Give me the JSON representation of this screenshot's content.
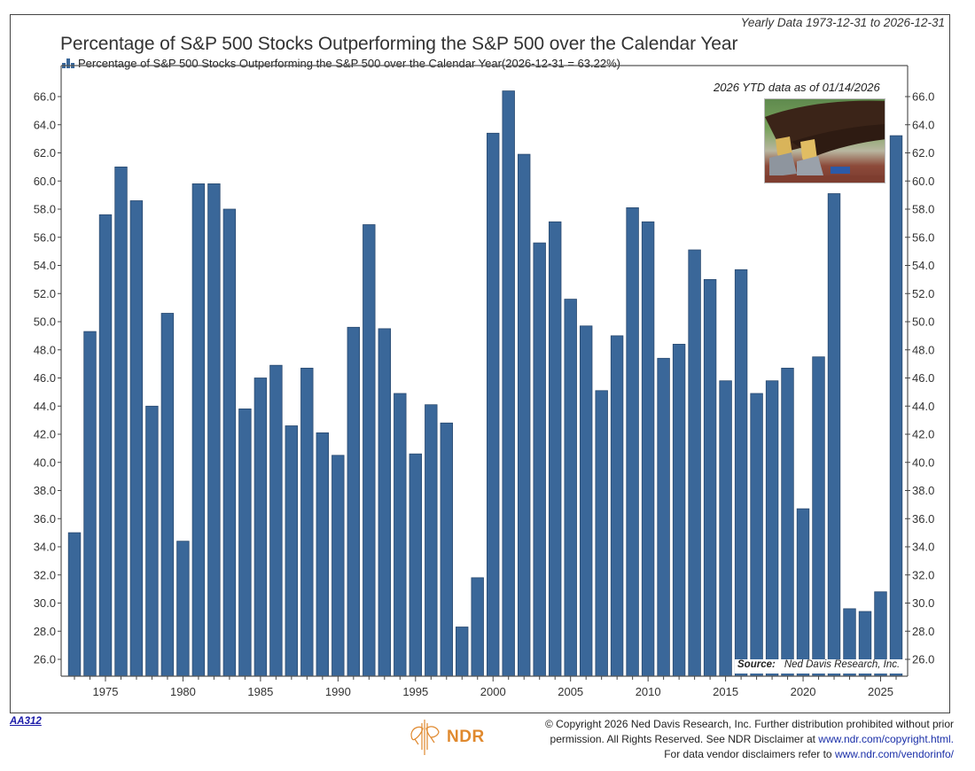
{
  "header": {
    "range_note": "Yearly Data 1973-12-31 to 2026-12-31",
    "title": "Percentage of S&P 500 Stocks Outperforming the S&P 500 over the Calendar Year",
    "legend_label": "Percentage of S&P 500 Stocks Outperforming the S&P 500 over the Calendar Year(2026-12-31 = 63.22%)",
    "legend_icon": "bar-chart-icon",
    "ytd_note": "2026 YTD data as of 01/14/2026",
    "photo_icon": "sprinter-starting-blocks-photo"
  },
  "chart_data": {
    "type": "bar",
    "title": "Percentage of S&P 500 Stocks Outperforming the S&P 500 over the Calendar Year",
    "xlabel": "",
    "ylabel": "",
    "bar_color": "#3a6799",
    "ylim": [
      24.9,
      67.6
    ],
    "y_ticks": [
      26.0,
      28.0,
      30.0,
      32.0,
      34.0,
      36.0,
      38.0,
      40.0,
      42.0,
      44.0,
      46.0,
      48.0,
      50.0,
      52.0,
      54.0,
      56.0,
      58.0,
      60.0,
      62.0,
      64.0,
      66.0
    ],
    "y_tick_labels": [
      "26.0",
      "28.0",
      "30.0",
      "32.0",
      "34.0",
      "36.0",
      "38.0",
      "40.0",
      "42.0",
      "44.0",
      "46.0",
      "48.0",
      "50.0",
      "52.0",
      "54.0",
      "56.0",
      "58.0",
      "60.0",
      "62.0",
      "64.0",
      "66.0"
    ],
    "y_axes": "left-and-right",
    "x_tick_labels": [
      "1975",
      "1980",
      "1985",
      "1990",
      "1995",
      "2000",
      "2005",
      "2010",
      "2015",
      "2020",
      "2025"
    ],
    "grid": false,
    "legend": "top-left",
    "categories": [
      1973,
      1974,
      1975,
      1976,
      1977,
      1978,
      1979,
      1980,
      1981,
      1982,
      1983,
      1984,
      1985,
      1986,
      1987,
      1988,
      1989,
      1990,
      1991,
      1992,
      1993,
      1994,
      1995,
      1996,
      1997,
      1998,
      1999,
      2000,
      2001,
      2002,
      2003,
      2004,
      2005,
      2006,
      2007,
      2008,
      2009,
      2010,
      2011,
      2012,
      2013,
      2014,
      2015,
      2016,
      2017,
      2018,
      2019,
      2020,
      2021,
      2022,
      2023,
      2024,
      2025,
      2026
    ],
    "values": [
      35.0,
      49.3,
      57.6,
      61.0,
      58.6,
      44.0,
      50.6,
      34.4,
      59.8,
      59.8,
      58.0,
      43.8,
      46.0,
      46.9,
      42.6,
      46.7,
      42.1,
      40.5,
      49.6,
      56.9,
      49.5,
      44.9,
      40.6,
      44.1,
      42.8,
      28.3,
      31.8,
      63.4,
      66.4,
      61.9,
      55.6,
      57.1,
      51.6,
      49.7,
      45.1,
      49.0,
      58.1,
      57.1,
      47.4,
      48.4,
      55.1,
      53.0,
      45.8,
      53.7,
      44.9,
      45.8,
      46.7,
      36.7,
      47.5,
      59.1,
      29.6,
      29.4,
      30.8,
      63.22
    ],
    "annotations": [
      "2026 YTD data as of 01/14/2026",
      "Source: Ned Davis Research, Inc."
    ]
  },
  "source": {
    "label": "Source:",
    "text": "Ned Davis Research, Inc."
  },
  "footer": {
    "chart_code": "AA312",
    "logo_text": "NDR",
    "logo_icon": "bull-bear-logo-icon",
    "copyright_line1": "© Copyright 2026 Ned Davis Research, Inc. Further distribution prohibited without prior",
    "copyright_line2_text": "permission. All Rights Reserved. See NDR Disclaimer at ",
    "copyright_line2_link": "www.ndr.com/copyright.html.",
    "copyright_line3_text": "For data vendor disclaimers refer to ",
    "copyright_line3_link": "www.ndr.com/vendorinfo/",
    "link_color": "#1a2fa8",
    "logo_color": "#e0892e"
  }
}
